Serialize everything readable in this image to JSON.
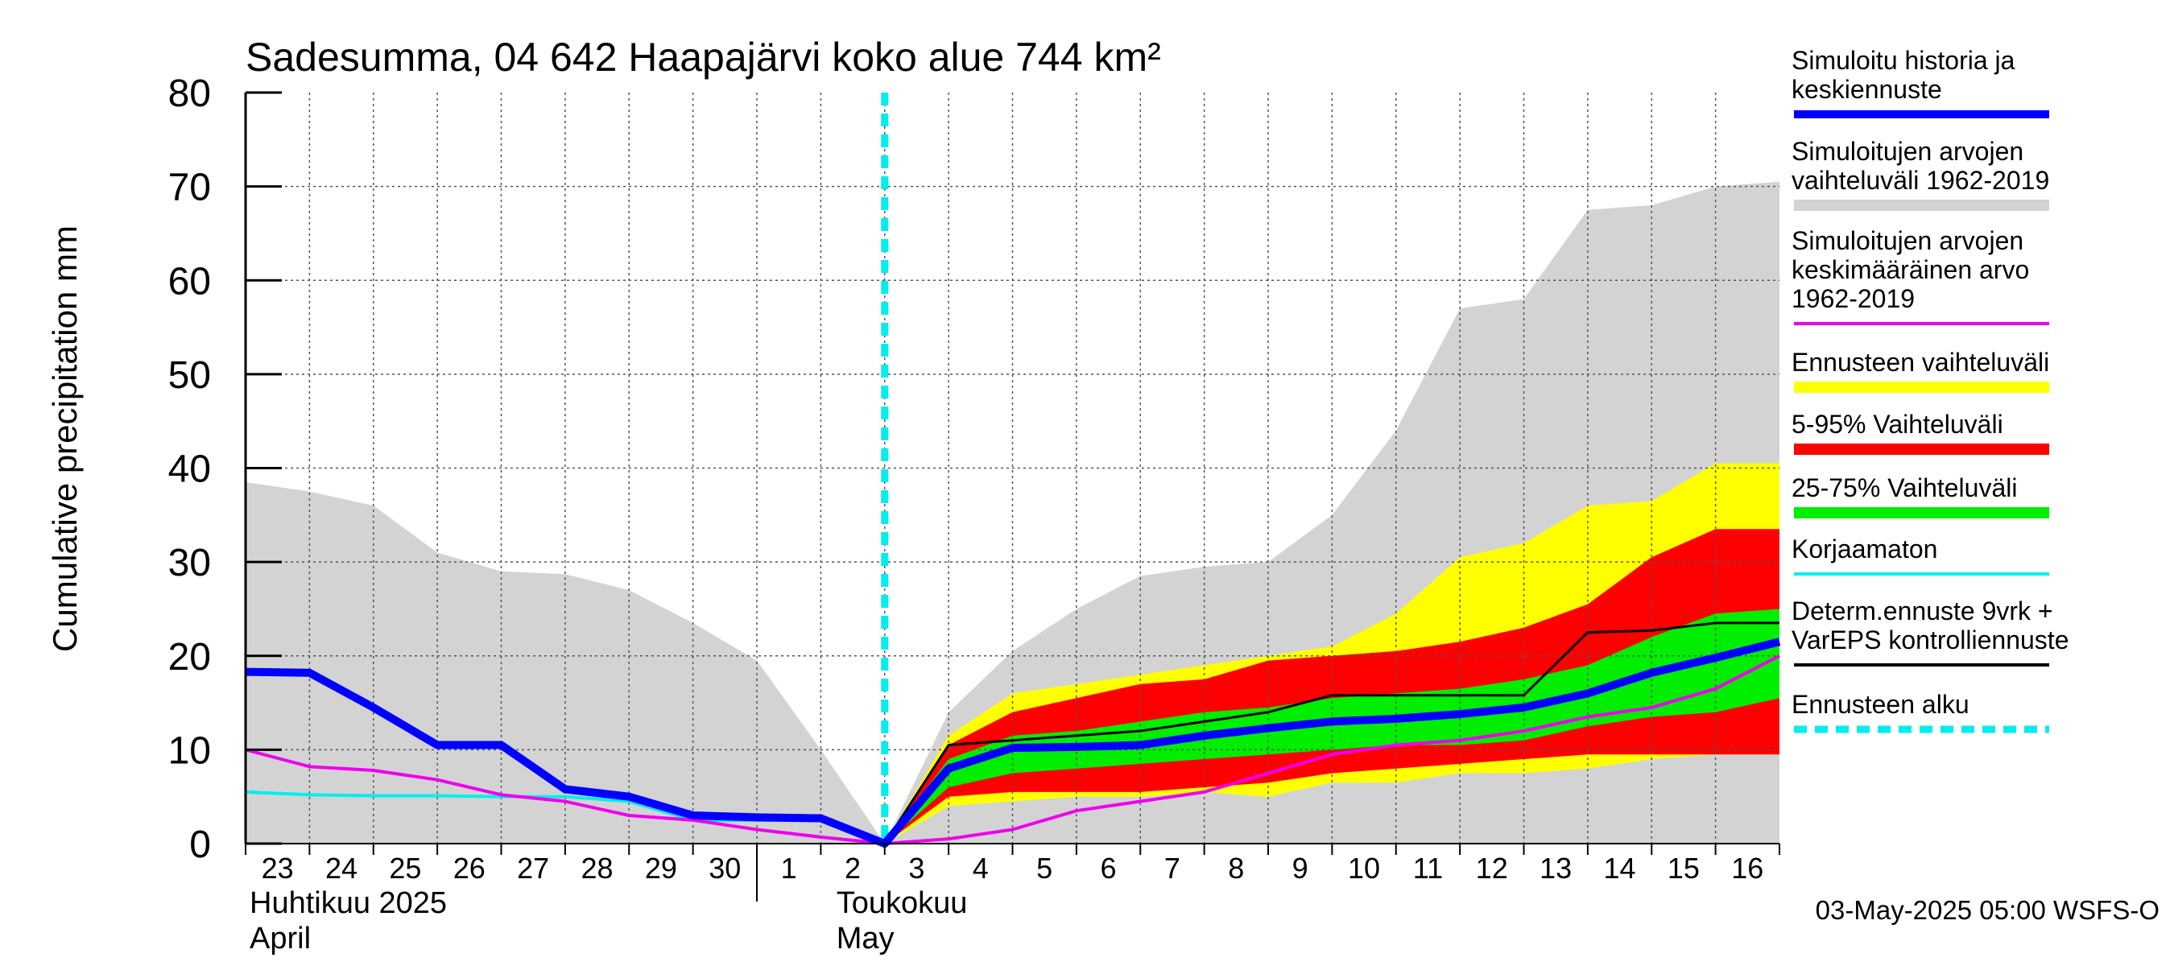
{
  "chart_data": {
    "type": "area",
    "title": "Sadesumma, 04 642 Haapajärvi koko alue 744 km²",
    "ylabel": "Cumulative precipitation   mm",
    "xlabel": "",
    "ylim": [
      0,
      80
    ],
    "y_ticks": [
      "0",
      "10",
      "20",
      "30",
      "40",
      "50",
      "60",
      "70",
      "80"
    ],
    "grid": true,
    "legend_position": "right",
    "x_day_offsets": [
      0,
      1,
      2,
      3,
      4,
      5,
      6,
      7,
      8,
      9,
      10,
      11,
      12,
      13,
      14,
      15,
      16,
      17,
      18,
      19,
      20,
      21,
      22,
      23,
      24
    ],
    "x_tick_labels": [
      "23",
      "24",
      "25",
      "26",
      "27",
      "28",
      "29",
      "30",
      "1",
      "2",
      "3",
      "4",
      "5",
      "6",
      "7",
      "8",
      "9",
      "10",
      "11",
      "12",
      "13",
      "14",
      "15",
      "16"
    ],
    "month_labels": [
      {
        "line1": "Huhtikuu  2025",
        "line2": "April"
      },
      {
        "line1": "Toukokuu",
        "line2": "May"
      }
    ],
    "forecast_start_offset": 10,
    "footer": "03-May-2025 05:00 WSFS-O",
    "colors": {
      "hist_range": "#d3d3d3",
      "forecast_range": "#ffff00",
      "p5_95": "#ff0000",
      "p25_75": "#00ee00",
      "main": "#0000ff",
      "mean": "#ee00ee",
      "uncorrected": "#00eeee",
      "deterministic": "#000000",
      "forecast_start": "#00eeee"
    },
    "bands": {
      "hist_range": {
        "x": [
          0,
          1,
          2,
          3,
          4,
          5,
          6,
          7,
          8,
          9,
          10,
          11,
          12,
          13,
          14,
          15,
          16,
          17,
          18,
          19,
          20,
          21,
          22,
          23,
          24
        ],
        "upper": [
          38.5,
          37.5,
          36,
          31,
          29,
          28.7,
          27,
          23.5,
          19.5,
          10,
          0,
          14,
          20.5,
          25,
          28.5,
          29.5,
          30,
          35,
          44,
          57,
          58,
          67.5,
          68,
          70,
          70.5
        ],
        "lower": [
          0,
          0,
          0,
          0,
          0,
          0,
          0,
          0,
          0,
          0,
          0,
          0,
          0,
          0,
          0,
          0,
          0,
          0,
          0,
          0,
          0,
          0,
          0,
          0,
          0
        ]
      },
      "forecast_range": {
        "x": [
          10,
          11,
          12,
          13,
          14,
          15,
          16,
          17,
          18,
          19,
          20,
          21,
          22,
          23,
          24
        ],
        "upper": [
          0,
          11.5,
          16,
          17,
          18,
          19,
          20,
          21,
          24.5,
          30.5,
          32,
          36,
          36.5,
          40.5,
          40.5
        ],
        "lower": [
          0,
          4,
          4.5,
          5,
          5,
          5.5,
          5,
          6.5,
          6.5,
          7.5,
          7.5,
          8,
          9,
          9.5,
          9.5
        ]
      },
      "p5_95": {
        "x": [
          10,
          11,
          12,
          13,
          14,
          15,
          16,
          17,
          18,
          19,
          20,
          21,
          22,
          23,
          24
        ],
        "upper": [
          0,
          10.5,
          14,
          15.5,
          17,
          17.5,
          19.5,
          20,
          20.5,
          21.5,
          23,
          25.5,
          30.5,
          33.5,
          33.5
        ],
        "lower": [
          0,
          5,
          5.5,
          5.5,
          5.5,
          6,
          6.5,
          7.5,
          8,
          8.5,
          9,
          9.5,
          9.5,
          9.5,
          9.5
        ]
      },
      "p25_75": {
        "x": [
          10,
          11,
          12,
          13,
          14,
          15,
          16,
          17,
          18,
          19,
          20,
          21,
          22,
          23,
          24
        ],
        "upper": [
          0,
          9,
          11.5,
          12,
          13,
          14,
          14.5,
          15.5,
          16,
          16.5,
          17.5,
          19,
          22,
          24.5,
          25
        ],
        "lower": [
          0,
          6,
          7.5,
          8,
          8.5,
          9,
          9.5,
          10,
          10.5,
          10.5,
          11,
          12.5,
          13.5,
          14,
          15.5
        ]
      }
    },
    "series": [
      {
        "name": "Simuloitu historia ja keskiennuste",
        "color": "#0000ff",
        "x": [
          0,
          1,
          2,
          3,
          4,
          5,
          6,
          7,
          8,
          9,
          10,
          11,
          12,
          13,
          14,
          15,
          16,
          17,
          18,
          19,
          20,
          21,
          22,
          23,
          24
        ],
        "values": [
          18.3,
          18.2,
          14.5,
          10.5,
          10.5,
          5.8,
          5,
          3,
          2.8,
          2.7,
          0,
          8,
          10.2,
          10.3,
          10.5,
          11.5,
          12.3,
          13,
          13.3,
          13.8,
          14.5,
          16,
          18.2,
          19.8,
          21.5
        ]
      },
      {
        "name": "Simuloitujen arvojen keskimääräinen arvo 1962-2019",
        "color": "#ee00ee",
        "x": [
          0,
          1,
          2,
          3,
          4,
          5,
          6,
          7,
          8,
          9,
          10,
          11,
          12,
          13,
          14,
          15,
          16,
          17,
          18,
          19,
          20,
          21,
          22,
          23,
          24
        ],
        "values": [
          10,
          8.2,
          7.8,
          6.8,
          5.2,
          4.5,
          3,
          2.5,
          1.5,
          0.7,
          0,
          0.5,
          1.5,
          3.5,
          4.5,
          5.5,
          7.5,
          9.5,
          10.5,
          11,
          12,
          13.5,
          14.5,
          16.5,
          20
        ]
      },
      {
        "name": "Korjaamaton",
        "color": "#00eeee",
        "x": [
          0,
          1,
          2,
          3,
          4,
          5,
          6,
          7,
          8,
          9,
          10
        ],
        "values": [
          5.5,
          5.2,
          5.1,
          5.1,
          5,
          5,
          4.5,
          2.5,
          2.5,
          2.5,
          0
        ]
      },
      {
        "name": "Determ.ennuste 9vrk + VarEPS kontrolliennuste",
        "color": "#000000",
        "x": [
          10,
          11,
          12,
          13,
          14,
          15,
          16,
          17,
          18,
          19,
          20,
          21,
          22,
          23,
          24
        ],
        "values": [
          0,
          10.5,
          11,
          11.5,
          12,
          13,
          14,
          15.8,
          15.8,
          15.8,
          15.8,
          22.5,
          22.7,
          23.5,
          23.5
        ]
      }
    ],
    "legend": [
      {
        "label": "Simuloitu historia ja keskiennuste",
        "lines": [
          "Simuloitu historia ja",
          "keskiennuste"
        ],
        "color": "#0000ff",
        "style": "line"
      },
      {
        "label": "Simuloitujen arvojen vaihteluväli 1962-2019",
        "lines": [
          "Simuloitujen arvojen",
          "vaihteluväli 1962-2019"
        ],
        "color": "#d3d3d3",
        "style": "band"
      },
      {
        "label": "Simuloitujen arvojen keskimääräinen arvo 1962-2019",
        "lines": [
          "Simuloitujen arvojen",
          "keskimääräinen arvo",
          "   1962-2019"
        ],
        "color": "#ee00ee",
        "style": "thin"
      },
      {
        "label": "Ennusteen vaihteluväli",
        "lines": [
          "Ennusteen vaihteluväli"
        ],
        "color": "#ffff00",
        "style": "band"
      },
      {
        "label": "5-95% Vaihteluväli",
        "lines": [
          "5-95% Vaihteluväli"
        ],
        "color": "#ff0000",
        "style": "band"
      },
      {
        "label": "25-75% Vaihteluväli",
        "lines": [
          "25-75% Vaihteluväli"
        ],
        "color": "#00ee00",
        "style": "band"
      },
      {
        "label": "Korjaamaton",
        "lines": [
          "Korjaamaton"
        ],
        "color": "#00eeee",
        "style": "thin"
      },
      {
        "label": "Determ.ennuste 9vrk + VarEPS kontrolliennuste",
        "lines": [
          "Determ.ennuste 9vrk +",
          "VarEPS kontrolliennuste"
        ],
        "color": "#000000",
        "style": "thin"
      },
      {
        "label": "Ennusteen alku",
        "lines": [
          "Ennusteen alku"
        ],
        "color": "#00eeee",
        "style": "dashed"
      }
    ]
  }
}
